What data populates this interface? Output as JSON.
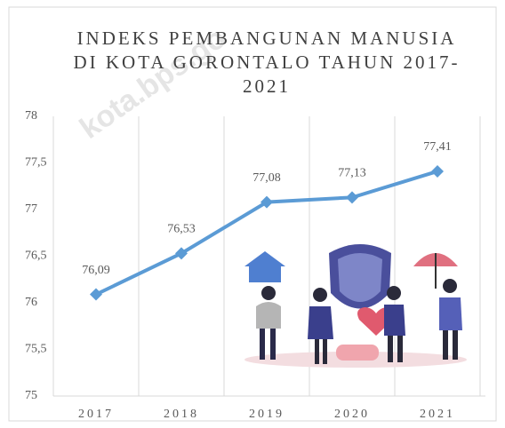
{
  "chart_data": {
    "type": "line",
    "title": "INDEKS PEMBANGUNAN MANUSIA DI KOTA GORONTALO TAHUN 2017-2021",
    "watermark": "kota.bps.go",
    "categories": [
      "2017",
      "2018",
      "2019",
      "2020",
      "2021"
    ],
    "values": [
      76.09,
      76.53,
      77.08,
      77.13,
      77.41
    ],
    "value_labels": [
      "76,09",
      "76,53",
      "77,08",
      "77,13",
      "77,41"
    ],
    "color": "#5b9bd5",
    "ylim": [
      75,
      78
    ],
    "yticks": [
      75,
      {
        "value": 75.5,
        "label": "75,5"
      },
      76,
      {
        "value": 76.5,
        "label": "76,5"
      },
      77,
      {
        "value": 77.5,
        "label": "77,5"
      },
      78
    ],
    "grid": true
  }
}
